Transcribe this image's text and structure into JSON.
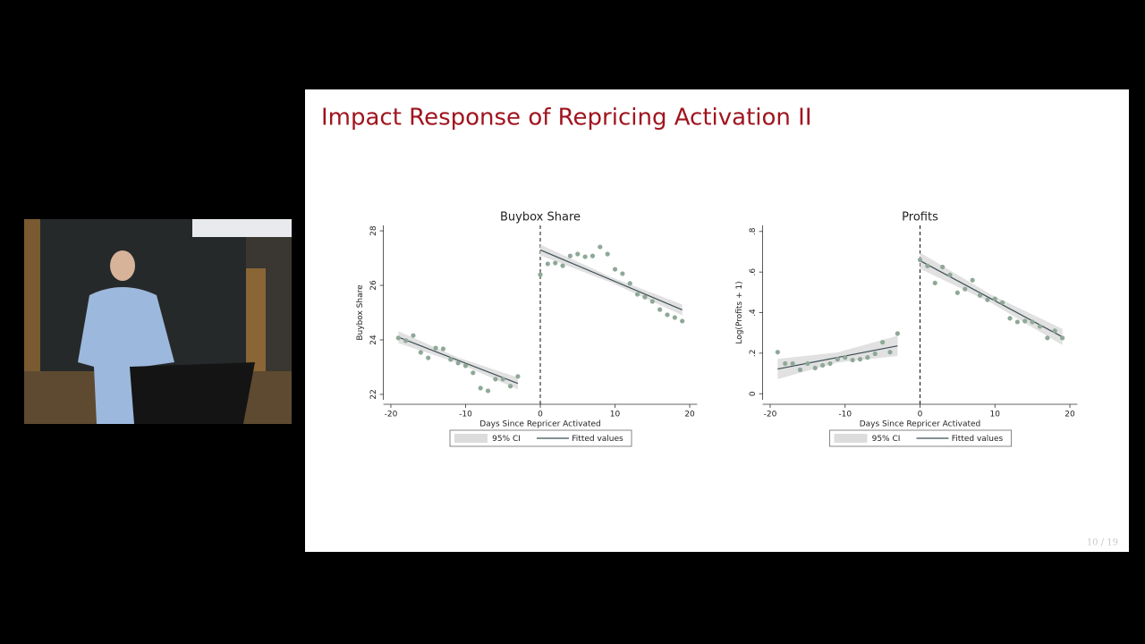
{
  "slide": {
    "title": "Impact Response of Repricing Activation II",
    "page": "10 / 19"
  },
  "chart_data": [
    {
      "type": "scatter",
      "title": "Buybox Share",
      "x_label": "Days Since Repricer Activated",
      "y_label": "Buybox Share",
      "xlim": [
        -21,
        21
      ],
      "xticks": [
        -20,
        -10,
        0,
        10,
        20
      ],
      "ylim": [
        21.8,
        28.2
      ],
      "yticks": [
        22,
        24,
        26,
        28
      ],
      "vline": 0,
      "points": {
        "color": "#8fa898",
        "x": [
          -19,
          -18,
          -17,
          -16,
          -15,
          -14,
          -13,
          -12,
          -11,
          -10,
          -9,
          -8,
          -7,
          -6,
          -5,
          -4,
          -3,
          0,
          1,
          2,
          3,
          4,
          5,
          6,
          7,
          8,
          9,
          10,
          11,
          12,
          13,
          14,
          15,
          16,
          17,
          18,
          19
        ],
        "values": [
          24.07,
          23.97,
          24.16,
          23.54,
          23.34,
          23.7,
          23.67,
          23.28,
          23.15,
          23.05,
          22.79,
          22.23,
          22.13,
          22.56,
          22.56,
          22.3,
          22.66,
          26.39,
          26.79,
          26.82,
          26.72,
          27.08,
          27.15,
          27.05,
          27.08,
          27.41,
          27.15,
          26.59,
          26.43,
          26.07,
          25.67,
          25.57,
          25.41,
          25.11,
          24.92,
          24.82,
          24.69
        ]
      },
      "series": [
        {
          "name": "95% CI",
          "color": "#dcdcdc",
          "segments": [
            {
              "x": [
                -19,
                -11,
                -3
              ],
              "lower": [
                23.88,
                23.15,
                22.18
              ],
              "upper": [
                24.32,
                23.35,
                22.62
              ]
            },
            {
              "x": [
                0,
                9.5,
                19
              ],
              "lower": [
                27.1,
                26.1,
                24.9
              ],
              "upper": [
                27.5,
                26.3,
                25.3
              ]
            }
          ]
        },
        {
          "name": "Fitted values",
          "color": "#3d4f55",
          "segments": [
            {
              "x": [
                -19,
                -3
              ],
              "values": [
                24.1,
                22.4
              ]
            },
            {
              "x": [
                0,
                19
              ],
              "values": [
                27.3,
                25.1
              ]
            }
          ]
        }
      ]
    },
    {
      "type": "scatter",
      "title": "Profits",
      "x_label": "Days Since Repricer Activated",
      "y_label": "Log(Profits + 1)",
      "xlim": [
        -21,
        21
      ],
      "xticks": [
        -20,
        -10,
        0,
        10,
        20
      ],
      "ylim": [
        -0.03,
        0.83
      ],
      "yticks": [
        0,
        {
          "value": 0.2,
          "label": ".2"
        },
        {
          "value": 0.4,
          "label": ".4"
        },
        {
          "value": 0.6,
          "label": ".6"
        },
        {
          "value": 0.8,
          "label": ".8"
        }
      ],
      "vline": 0,
      "points": {
        "color": "#8fa898",
        "x": [
          -19,
          -18,
          -17,
          -16,
          -15,
          -14,
          -13,
          -12,
          -11,
          -10,
          -9,
          -8,
          -7,
          -6,
          -5,
          -4,
          -3,
          0,
          1,
          2,
          3,
          4,
          5,
          6,
          7,
          8,
          9,
          10,
          11,
          12,
          13,
          14,
          15,
          16,
          17,
          18,
          19
        ],
        "values": [
          0.205,
          0.149,
          0.149,
          0.118,
          0.149,
          0.127,
          0.14,
          0.149,
          0.17,
          0.179,
          0.166,
          0.17,
          0.179,
          0.197,
          0.254,
          0.205,
          0.297,
          0.66,
          0.63,
          0.546,
          0.625,
          0.586,
          0.498,
          0.516,
          0.56,
          0.485,
          0.463,
          0.468,
          0.45,
          0.372,
          0.354,
          0.358,
          0.354,
          0.332,
          0.275,
          0.31,
          0.275
        ]
      },
      "series": [
        {
          "name": "95% CI",
          "color": "#dcdcdc",
          "segments": [
            {
              "x": [
                -19,
                -11,
                -3
              ],
              "lower": [
                0.072,
                0.154,
                0.186
              ],
              "upper": [
                0.172,
                0.204,
                0.286
              ]
            },
            {
              "x": [
                0,
                9.5,
                19
              ],
              "lower": [
                0.616,
                0.448,
                0.24
              ],
              "upper": [
                0.696,
                0.488,
                0.32
              ]
            }
          ]
        },
        {
          "name": "Fitted values",
          "color": "#3d4f55",
          "segments": [
            {
              "x": [
                -19,
                -3
              ],
              "values": [
                0.122,
                0.236
              ]
            },
            {
              "x": [
                0,
                19
              ],
              "values": [
                0.656,
                0.28
              ]
            }
          ]
        }
      ]
    }
  ]
}
